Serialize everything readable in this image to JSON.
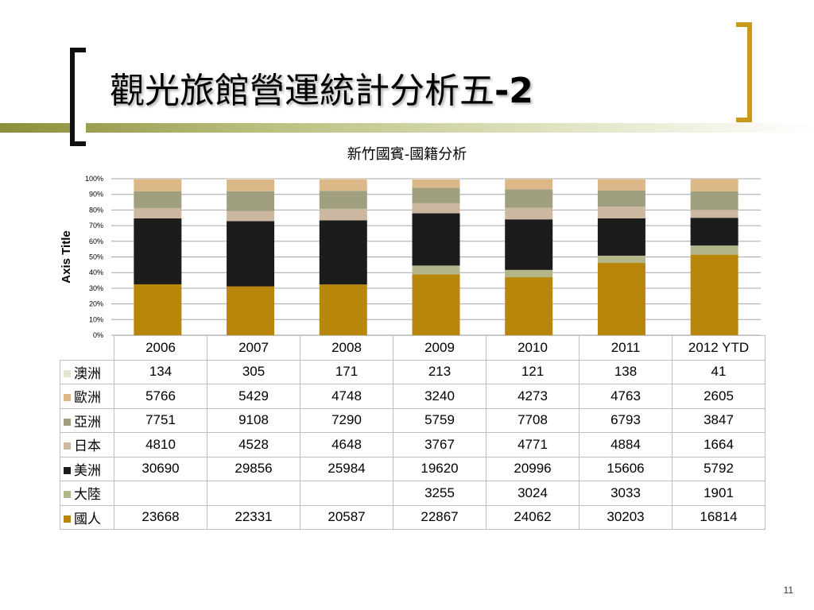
{
  "slide": {
    "title": "觀光旅館營運統計分析五",
    "title_suffix": "-2",
    "page_number": "11"
  },
  "colors": {
    "accent_gold": "#c99a1a",
    "olive": "#8a8f3a"
  },
  "chart_data": {
    "type": "bar",
    "stacked": "percent",
    "title": "新竹國賓-國籍分析",
    "ylabel": "Axis Title",
    "xlabel": "",
    "ylim": [
      0,
      100
    ],
    "y_ticks": [
      "0%",
      "10%",
      "20%",
      "30%",
      "40%",
      "50%",
      "60%",
      "70%",
      "80%",
      "90%",
      "100%"
    ],
    "grid": true,
    "legend": "table-left",
    "categories": [
      "2006",
      "2007",
      "2008",
      "2009",
      "2010",
      "2011",
      "2012 YTD"
    ],
    "series": [
      {
        "name": "國人",
        "color": "#b8860b",
        "values": [
          23668,
          22331,
          20587,
          22867,
          24062,
          30203,
          16814
        ]
      },
      {
        "name": "大陸",
        "color": "#b5b58a",
        "values": [
          null,
          null,
          null,
          3255,
          3024,
          3033,
          1901
        ]
      },
      {
        "name": "美洲",
        "color": "#1c1c1c",
        "values": [
          30690,
          29856,
          25984,
          19620,
          20996,
          15606,
          5792
        ]
      },
      {
        "name": "日本",
        "color": "#ccb8a0",
        "values": [
          4810,
          4528,
          4648,
          3767,
          4771,
          4884,
          1664
        ]
      },
      {
        "name": "亞洲",
        "color": "#a0a080",
        "values": [
          7751,
          9108,
          7290,
          5759,
          7708,
          6793,
          3847
        ]
      },
      {
        "name": "歐洲",
        "color": "#dcb888",
        "values": [
          5766,
          5429,
          4748,
          3240,
          4273,
          4763,
          2605
        ]
      },
      {
        "name": "澳洲",
        "color": "#e8e4d4",
        "values": [
          134,
          305,
          171,
          213,
          121,
          138,
          41
        ]
      }
    ],
    "table_order": [
      "澳洲",
      "歐洲",
      "亞洲",
      "日本",
      "美洲",
      "大陸",
      "國人"
    ]
  }
}
